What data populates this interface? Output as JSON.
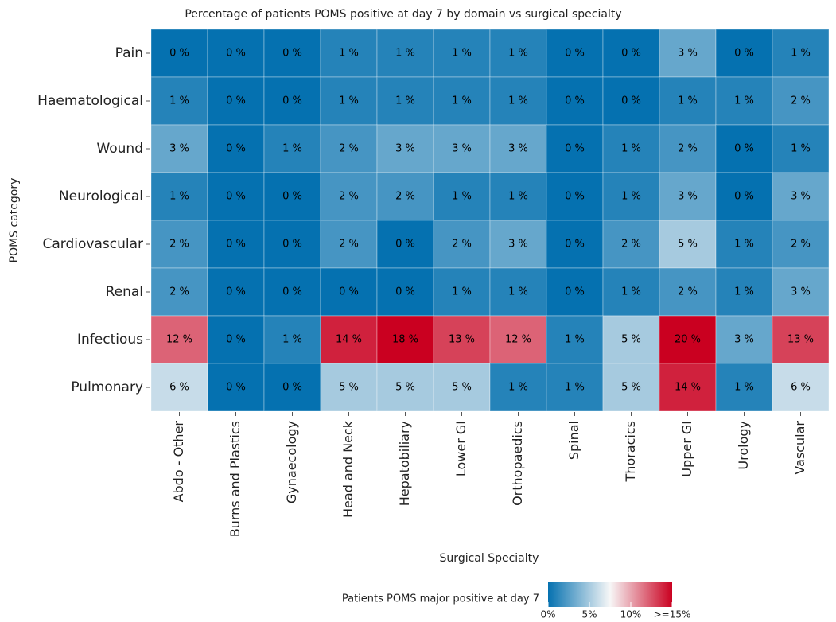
{
  "chart_data": {
    "type": "heatmap",
    "title": "Percentage of patients POMS positive at day 7 by domain vs surgical specialty",
    "x_label": "Surgical Specialty",
    "y_label": "POMS category",
    "x_categories": [
      "Abdo - Other",
      "Burns and Plastics",
      "Gynaecology",
      "Head and Neck",
      "Hepatobiliary",
      "Lower GI",
      "Orthopaedics",
      "Spinal",
      "Thoracics",
      "Upper GI",
      "Urology",
      "Vascular"
    ],
    "y_categories": [
      "Pain",
      "Haematological",
      "Wound",
      "Neurological",
      "Cardiovascular",
      "Renal",
      "Infectious",
      "Pulmonary"
    ],
    "values": [
      [
        0,
        0,
        0,
        1,
        1,
        1,
        1,
        0,
        0,
        3,
        0,
        1
      ],
      [
        1,
        0,
        0,
        1,
        1,
        1,
        1,
        0,
        0,
        1,
        1,
        2
      ],
      [
        3,
        0,
        1,
        2,
        3,
        3,
        3,
        0,
        1,
        2,
        0,
        1
      ],
      [
        1,
        0,
        0,
        2,
        2,
        1,
        1,
        0,
        1,
        3,
        0,
        3
      ],
      [
        2,
        0,
        0,
        2,
        0,
        2,
        3,
        0,
        2,
        5,
        1,
        2
      ],
      [
        2,
        0,
        0,
        0,
        0,
        1,
        1,
        0,
        1,
        2,
        1,
        3
      ],
      [
        12,
        0,
        1,
        14,
        18,
        13,
        12,
        1,
        5,
        20,
        3,
        13
      ],
      [
        6,
        0,
        0,
        5,
        5,
        5,
        1,
        1,
        5,
        14,
        1,
        6
      ]
    ],
    "value_labels": [
      [
        "0 %",
        "0 %",
        "0 %",
        "1 %",
        "1 %",
        "1 %",
        "1 %",
        "0 %",
        "0 %",
        "3 %",
        "0 %",
        "1 %"
      ],
      [
        "1 %",
        "0 %",
        "0 %",
        "1 %",
        "1 %",
        "1 %",
        "1 %",
        "0 %",
        "0 %",
        "1 %",
        "1 %",
        "2 %"
      ],
      [
        "3 %",
        "0 %",
        "1 %",
        "2 %",
        "3 %",
        "3 %",
        "3 %",
        "0 %",
        "1 %",
        "2 %",
        "0 %",
        "1 %"
      ],
      [
        "1 %",
        "0 %",
        "0 %",
        "2 %",
        "2 %",
        "1 %",
        "1 %",
        "0 %",
        "1 %",
        "3 %",
        "0 %",
        "3 %"
      ],
      [
        "2 %",
        "0 %",
        "0 %",
        "2 %",
        "0 %",
        "2 %",
        "3 %",
        "0 %",
        "2 %",
        "5 %",
        "1 %",
        "2 %"
      ],
      [
        "2 %",
        "0 %",
        "0 %",
        "0 %",
        "0 %",
        "1 %",
        "1 %",
        "0 %",
        "1 %",
        "2 %",
        "1 %",
        "3 %"
      ],
      [
        "12 %",
        "0 %",
        "1 %",
        "14 %",
        "18 %",
        "13 %",
        "12 %",
        "1 %",
        "5 %",
        "20 %",
        "3 %",
        "13 %"
      ],
      [
        "6 %",
        "0 %",
        "0 %",
        "5 %",
        "5 %",
        "5 %",
        "1 %",
        "1 %",
        "5 %",
        "14 %",
        "1 %",
        "6 %"
      ]
    ],
    "legend_title": "Patients POMS major positive at day 7",
    "colors": [
      "#0571b0",
      "#f7f7f7",
      "#ca0020"
    ],
    "clim": [
      0,
      15
    ],
    "cticks": [
      {
        "value": 0,
        "label": "0%"
      },
      {
        "value": 5,
        "label": "5%"
      },
      {
        "value": 10,
        "label": "10%"
      },
      {
        "value": 15,
        "label": ">=15%"
      }
    ]
  }
}
